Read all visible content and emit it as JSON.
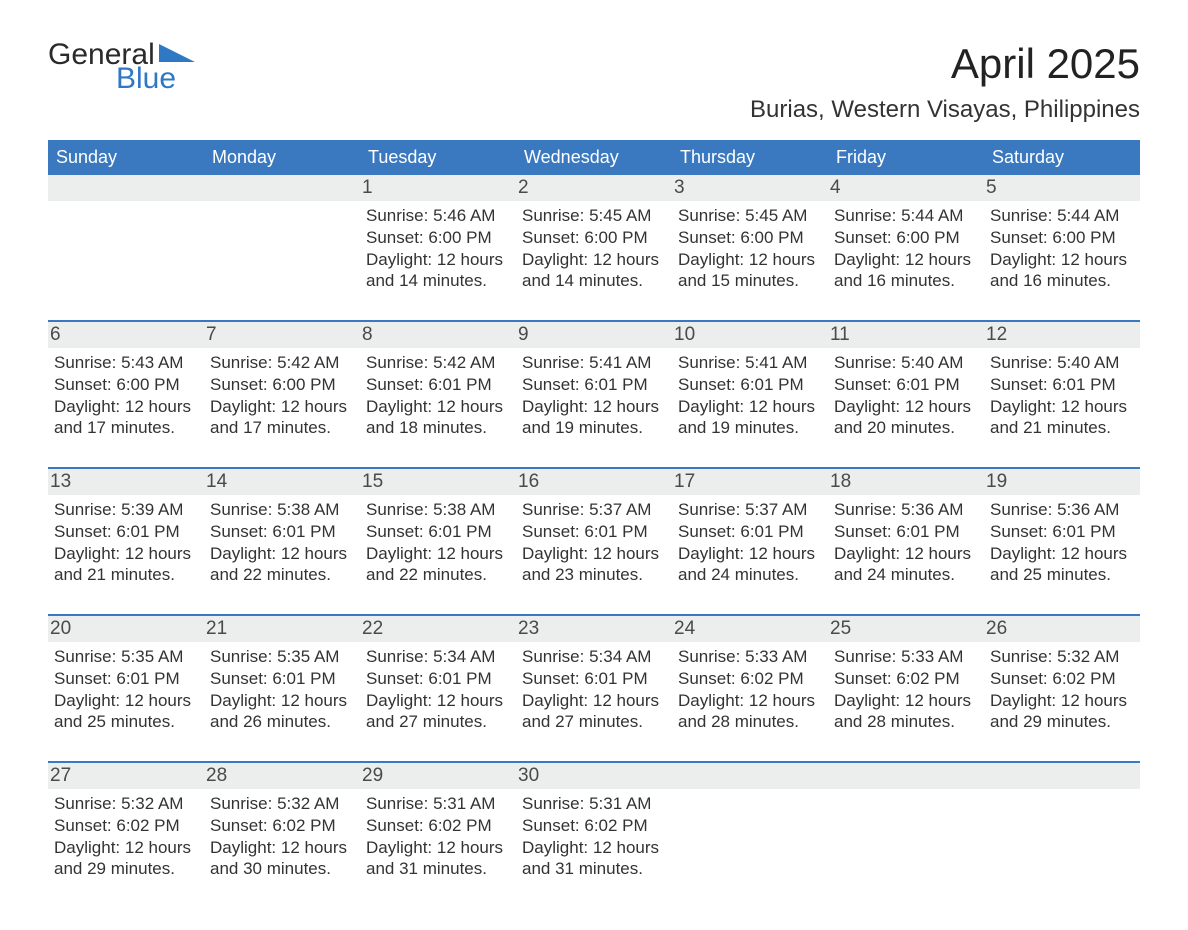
{
  "logo": {
    "word1": "General",
    "word2": "Blue"
  },
  "title": "April 2025",
  "subtitle": "Burias, Western Visayas, Philippines",
  "colors": {
    "header_bg": "#3a79bf",
    "header_text": "#ffffff",
    "daynum_bg": "#eceded",
    "week_divider": "#3a79bf",
    "logo_accent": "#2f78c4",
    "body_text": "#333333",
    "page_bg": "#ffffff"
  },
  "fonts": {
    "title_size_pt": 32,
    "subtitle_size_pt": 18,
    "dow_size_pt": 14,
    "daynum_size_pt": 14,
    "body_size_pt": 13
  },
  "days_of_week": [
    "Sunday",
    "Monday",
    "Tuesday",
    "Wednesday",
    "Thursday",
    "Friday",
    "Saturday"
  ],
  "weeks": [
    [
      {
        "day": null
      },
      {
        "day": null
      },
      {
        "day": 1,
        "sunrise": "5:46 AM",
        "sunset": "6:00 PM",
        "daylight": "12 hours and 14 minutes."
      },
      {
        "day": 2,
        "sunrise": "5:45 AM",
        "sunset": "6:00 PM",
        "daylight": "12 hours and 14 minutes."
      },
      {
        "day": 3,
        "sunrise": "5:45 AM",
        "sunset": "6:00 PM",
        "daylight": "12 hours and 15 minutes."
      },
      {
        "day": 4,
        "sunrise": "5:44 AM",
        "sunset": "6:00 PM",
        "daylight": "12 hours and 16 minutes."
      },
      {
        "day": 5,
        "sunrise": "5:44 AM",
        "sunset": "6:00 PM",
        "daylight": "12 hours and 16 minutes."
      }
    ],
    [
      {
        "day": 6,
        "sunrise": "5:43 AM",
        "sunset": "6:00 PM",
        "daylight": "12 hours and 17 minutes."
      },
      {
        "day": 7,
        "sunrise": "5:42 AM",
        "sunset": "6:00 PM",
        "daylight": "12 hours and 17 minutes."
      },
      {
        "day": 8,
        "sunrise": "5:42 AM",
        "sunset": "6:01 PM",
        "daylight": "12 hours and 18 minutes."
      },
      {
        "day": 9,
        "sunrise": "5:41 AM",
        "sunset": "6:01 PM",
        "daylight": "12 hours and 19 minutes."
      },
      {
        "day": 10,
        "sunrise": "5:41 AM",
        "sunset": "6:01 PM",
        "daylight": "12 hours and 19 minutes."
      },
      {
        "day": 11,
        "sunrise": "5:40 AM",
        "sunset": "6:01 PM",
        "daylight": "12 hours and 20 minutes."
      },
      {
        "day": 12,
        "sunrise": "5:40 AM",
        "sunset": "6:01 PM",
        "daylight": "12 hours and 21 minutes."
      }
    ],
    [
      {
        "day": 13,
        "sunrise": "5:39 AM",
        "sunset": "6:01 PM",
        "daylight": "12 hours and 21 minutes."
      },
      {
        "day": 14,
        "sunrise": "5:38 AM",
        "sunset": "6:01 PM",
        "daylight": "12 hours and 22 minutes."
      },
      {
        "day": 15,
        "sunrise": "5:38 AM",
        "sunset": "6:01 PM",
        "daylight": "12 hours and 22 minutes."
      },
      {
        "day": 16,
        "sunrise": "5:37 AM",
        "sunset": "6:01 PM",
        "daylight": "12 hours and 23 minutes."
      },
      {
        "day": 17,
        "sunrise": "5:37 AM",
        "sunset": "6:01 PM",
        "daylight": "12 hours and 24 minutes."
      },
      {
        "day": 18,
        "sunrise": "5:36 AM",
        "sunset": "6:01 PM",
        "daylight": "12 hours and 24 minutes."
      },
      {
        "day": 19,
        "sunrise": "5:36 AM",
        "sunset": "6:01 PM",
        "daylight": "12 hours and 25 minutes."
      }
    ],
    [
      {
        "day": 20,
        "sunrise": "5:35 AM",
        "sunset": "6:01 PM",
        "daylight": "12 hours and 25 minutes."
      },
      {
        "day": 21,
        "sunrise": "5:35 AM",
        "sunset": "6:01 PM",
        "daylight": "12 hours and 26 minutes."
      },
      {
        "day": 22,
        "sunrise": "5:34 AM",
        "sunset": "6:01 PM",
        "daylight": "12 hours and 27 minutes."
      },
      {
        "day": 23,
        "sunrise": "5:34 AM",
        "sunset": "6:01 PM",
        "daylight": "12 hours and 27 minutes."
      },
      {
        "day": 24,
        "sunrise": "5:33 AM",
        "sunset": "6:02 PM",
        "daylight": "12 hours and 28 minutes."
      },
      {
        "day": 25,
        "sunrise": "5:33 AM",
        "sunset": "6:02 PM",
        "daylight": "12 hours and 28 minutes."
      },
      {
        "day": 26,
        "sunrise": "5:32 AM",
        "sunset": "6:02 PM",
        "daylight": "12 hours and 29 minutes."
      }
    ],
    [
      {
        "day": 27,
        "sunrise": "5:32 AM",
        "sunset": "6:02 PM",
        "daylight": "12 hours and 29 minutes."
      },
      {
        "day": 28,
        "sunrise": "5:32 AM",
        "sunset": "6:02 PM",
        "daylight": "12 hours and 30 minutes."
      },
      {
        "day": 29,
        "sunrise": "5:31 AM",
        "sunset": "6:02 PM",
        "daylight": "12 hours and 31 minutes."
      },
      {
        "day": 30,
        "sunrise": "5:31 AM",
        "sunset": "6:02 PM",
        "daylight": "12 hours and 31 minutes."
      },
      {
        "day": null
      },
      {
        "day": null
      },
      {
        "day": null
      }
    ]
  ],
  "labels": {
    "sunrise_prefix": "Sunrise: ",
    "sunset_prefix": "Sunset: ",
    "daylight_prefix": "Daylight: "
  }
}
